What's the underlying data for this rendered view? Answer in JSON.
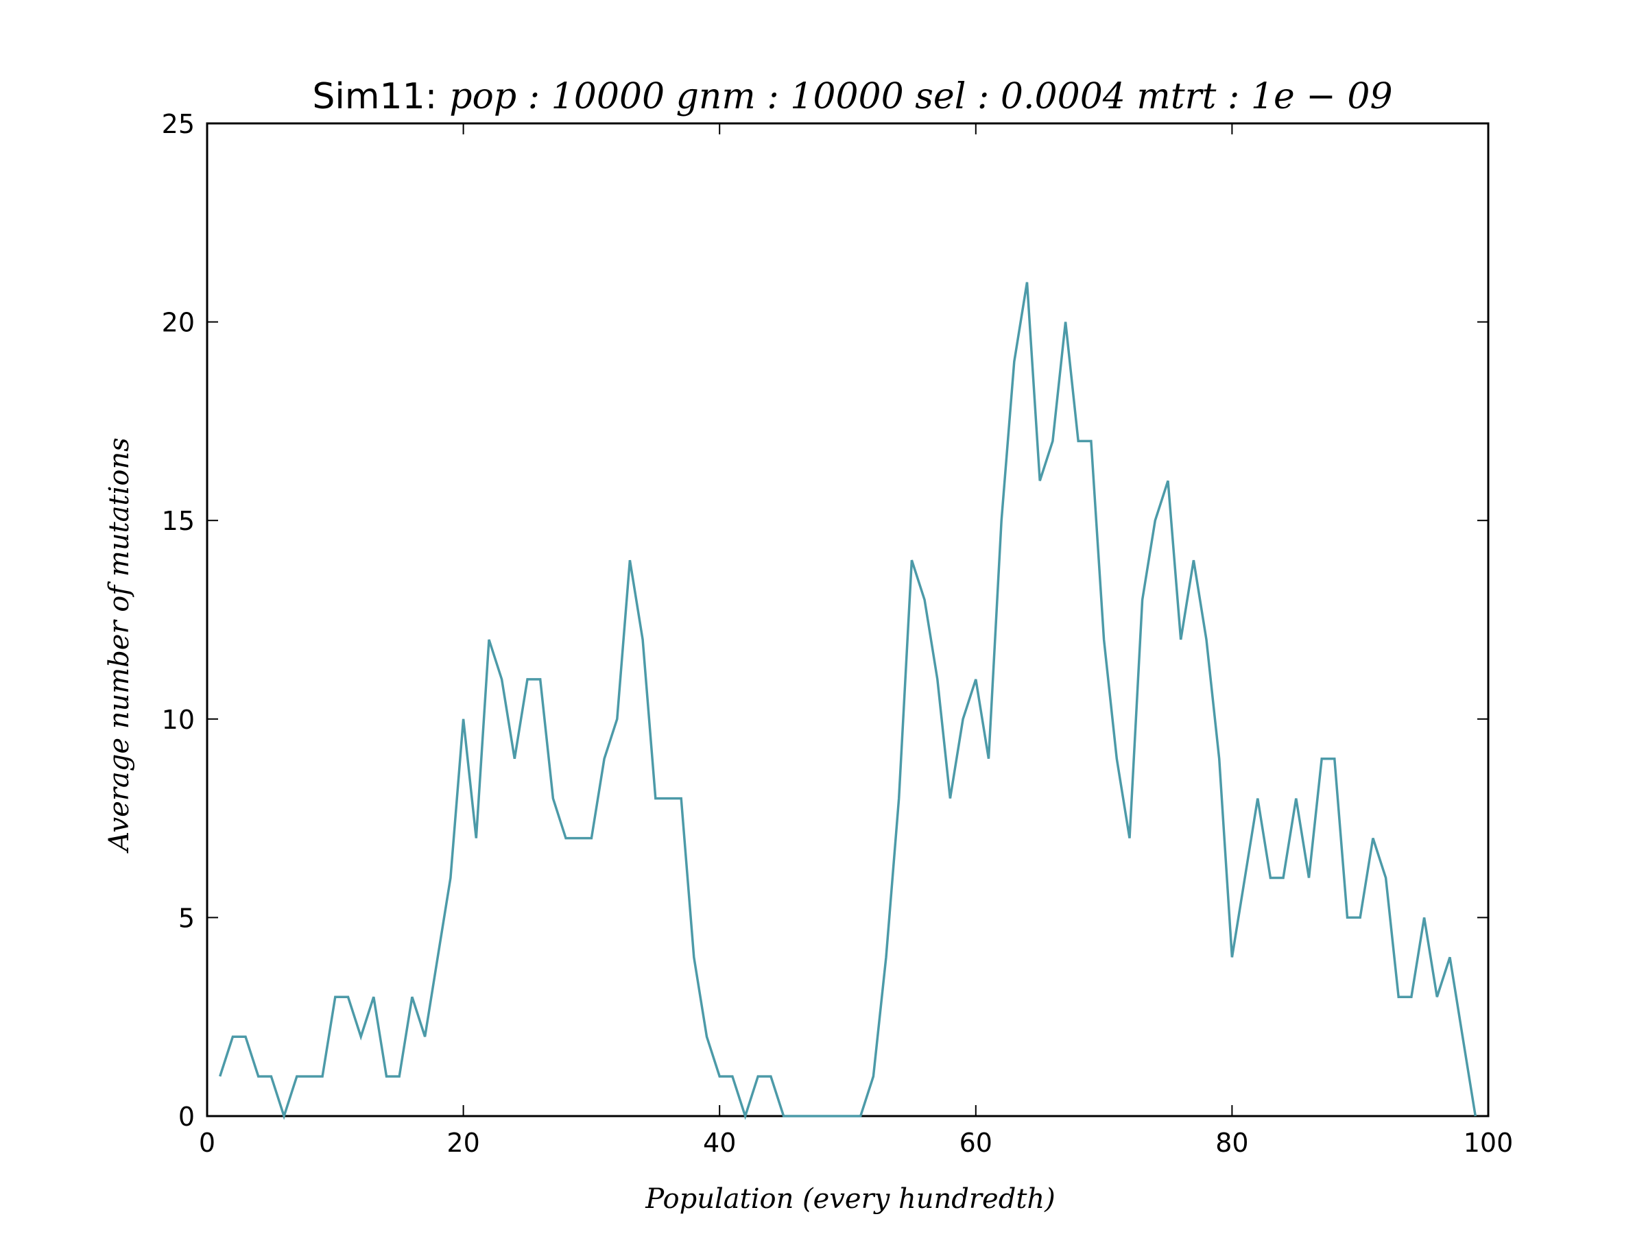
{
  "chart_data": {
    "type": "line",
    "title_prefix": "Sim11:",
    "title_math": "pop : 10000  gnm : 10000  sel : 0.0004  mtrt : 1e − 09",
    "xlabel": "Population (every hundredth)",
    "ylabel": "Average number of mutations",
    "xlim": [
      0,
      100
    ],
    "ylim": [
      0,
      25
    ],
    "xticks": [
      0,
      20,
      40,
      60,
      80,
      100
    ],
    "yticks": [
      0,
      5,
      10,
      15,
      20,
      25
    ],
    "xtick_labels": [
      "0",
      "20",
      "40",
      "60",
      "80",
      "100"
    ],
    "ytick_labels": [
      "0",
      "5",
      "10",
      "15",
      "20",
      "25"
    ],
    "grid": false,
    "line_color": "#4c9aa8",
    "x": [
      1,
      2,
      3,
      4,
      5,
      6,
      7,
      8,
      9,
      10,
      11,
      12,
      13,
      14,
      15,
      16,
      17,
      18,
      19,
      20,
      21,
      22,
      23,
      24,
      25,
      26,
      27,
      28,
      29,
      30,
      31,
      32,
      33,
      34,
      35,
      36,
      37,
      38,
      39,
      40,
      41,
      42,
      43,
      44,
      45,
      46,
      47,
      48,
      49,
      50,
      51,
      52,
      53,
      54,
      55,
      56,
      57,
      58,
      59,
      60,
      61,
      62,
      63,
      64,
      65,
      66,
      67,
      68,
      69,
      70,
      71,
      72,
      73,
      74,
      75,
      76,
      77,
      78,
      79,
      80,
      81,
      82,
      83,
      84,
      85,
      86,
      87,
      88,
      89,
      90,
      91,
      92,
      93,
      94,
      95,
      96,
      97,
      98,
      99
    ],
    "y": [
      1,
      2,
      2,
      1,
      1,
      0,
      1,
      1,
      1,
      3,
      3,
      2,
      3,
      1,
      1,
      3,
      2,
      4,
      6,
      10,
      7,
      12,
      11,
      9,
      11,
      11,
      8,
      7,
      7,
      7,
      9,
      10,
      14,
      12,
      8,
      8,
      8,
      4,
      2,
      1,
      1,
      0,
      1,
      1,
      0,
      0,
      0,
      0,
      0,
      0,
      0,
      1,
      4,
      8,
      14,
      13,
      11,
      8,
      10,
      11,
      9,
      15,
      19,
      21,
      16,
      17,
      20,
      17,
      17,
      12,
      9,
      7,
      13,
      15,
      16,
      12,
      14,
      12,
      9,
      4,
      6,
      8,
      6,
      6,
      8,
      6,
      9,
      9,
      5,
      5,
      7,
      6,
      3,
      3,
      5,
      3,
      4,
      2,
      0
    ]
  }
}
